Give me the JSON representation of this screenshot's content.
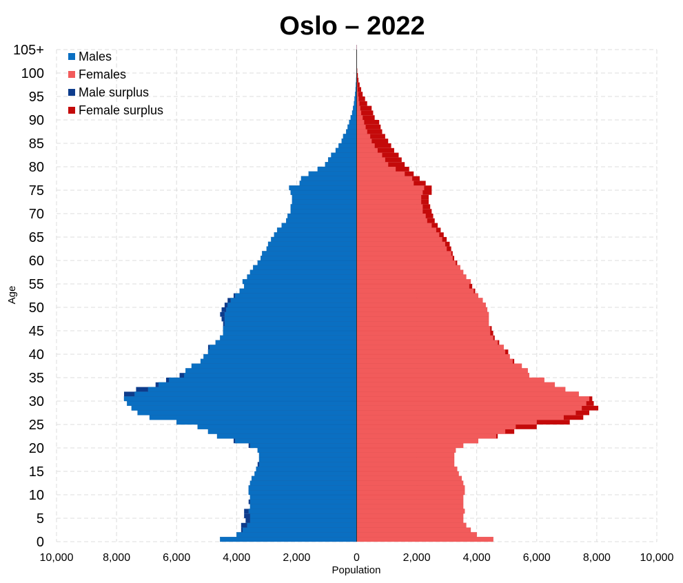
{
  "chart_data": {
    "type": "bar",
    "orientation": "horizontal",
    "title": "Oslo – 2022",
    "xlabel": "Population",
    "ylabel": "Age",
    "xlim": [
      -10000,
      10000
    ],
    "ylim": [
      0,
      105
    ],
    "x_ticks": [
      -10000,
      -8000,
      -6000,
      -4000,
      -2000,
      0,
      2000,
      4000,
      6000,
      8000,
      10000
    ],
    "x_tick_labels": [
      "10,000",
      "8,000",
      "6,000",
      "4,000",
      "2,000",
      "0",
      "2,000",
      "4,000",
      "6,000",
      "8,000",
      "10,000"
    ],
    "y_ticks": [
      0,
      5,
      10,
      15,
      20,
      25,
      30,
      35,
      40,
      45,
      50,
      55,
      60,
      65,
      70,
      75,
      80,
      85,
      90,
      95,
      100,
      105
    ],
    "y_tick_labels": [
      "0",
      "5",
      "10",
      "15",
      "20",
      "25",
      "30",
      "35",
      "40",
      "45",
      "50",
      "55",
      "60",
      "65",
      "70",
      "75",
      "80",
      "85",
      "90",
      "95",
      "100",
      "105+"
    ],
    "grid": true,
    "legend_position": "top-left",
    "legend": [
      {
        "label": "Males",
        "color": "#0a6fc2"
      },
      {
        "label": "Females",
        "color": "#f25b5b"
      },
      {
        "label": "Male surplus",
        "color": "#0d3c8c"
      },
      {
        "label": "Female surplus",
        "color": "#c40a0a"
      }
    ],
    "ages": [
      0,
      1,
      2,
      3,
      4,
      5,
      6,
      7,
      8,
      9,
      10,
      11,
      12,
      13,
      14,
      15,
      16,
      17,
      18,
      19,
      20,
      21,
      22,
      23,
      24,
      25,
      26,
      27,
      28,
      29,
      30,
      31,
      32,
      33,
      34,
      35,
      36,
      37,
      38,
      39,
      40,
      41,
      42,
      43,
      44,
      45,
      46,
      47,
      48,
      49,
      50,
      51,
      52,
      53,
      54,
      55,
      56,
      57,
      58,
      59,
      60,
      61,
      62,
      63,
      64,
      65,
      66,
      67,
      68,
      69,
      70,
      71,
      72,
      73,
      74,
      75,
      76,
      77,
      78,
      79,
      80,
      81,
      82,
      83,
      84,
      85,
      86,
      87,
      88,
      89,
      90,
      91,
      92,
      93,
      94,
      95,
      96,
      97,
      98,
      99,
      100,
      101,
      102,
      103,
      104,
      105
    ],
    "series": [
      {
        "name": "Males",
        "color": "#0a6fc2",
        "values": [
          4550,
          4000,
          3850,
          3850,
          3700,
          3750,
          3750,
          3550,
          3600,
          3550,
          3600,
          3600,
          3550,
          3500,
          3400,
          3350,
          3300,
          3250,
          3250,
          3300,
          3600,
          4100,
          4650,
          4950,
          5300,
          6000,
          6900,
          7300,
          7500,
          7650,
          7750,
          7750,
          7350,
          6700,
          6350,
          5900,
          5700,
          5500,
          5200,
          5100,
          4950,
          4950,
          4700,
          4550,
          4450,
          4450,
          4450,
          4500,
          4550,
          4500,
          4400,
          4300,
          4100,
          3900,
          3750,
          3800,
          3650,
          3550,
          3450,
          3300,
          3200,
          3150,
          3000,
          2950,
          2850,
          2750,
          2650,
          2500,
          2350,
          2300,
          2200,
          2200,
          2150,
          2150,
          2200,
          2250,
          1900,
          1850,
          1600,
          1300,
          1050,
          950,
          850,
          700,
          600,
          500,
          450,
          350,
          300,
          250,
          200,
          150,
          120,
          90,
          70,
          50,
          35,
          25,
          15,
          10,
          6,
          4,
          2,
          1,
          1,
          1
        ]
      },
      {
        "name": "Females",
        "color": "#f25b5b",
        "values": [
          4550,
          4000,
          3800,
          3650,
          3550,
          3550,
          3600,
          3550,
          3550,
          3550,
          3600,
          3600,
          3550,
          3500,
          3400,
          3350,
          3250,
          3250,
          3250,
          3300,
          3550,
          4050,
          4700,
          5250,
          6000,
          7100,
          7550,
          7750,
          8050,
          7900,
          7850,
          7400,
          6950,
          6600,
          6250,
          5750,
          5700,
          5500,
          5250,
          5100,
          5050,
          4900,
          4750,
          4600,
          4550,
          4500,
          4400,
          4400,
          4400,
          4350,
          4300,
          4200,
          4050,
          3950,
          3850,
          3800,
          3650,
          3550,
          3450,
          3350,
          3250,
          3200,
          3150,
          3100,
          3000,
          2900,
          2800,
          2700,
          2600,
          2550,
          2500,
          2450,
          2400,
          2400,
          2500,
          2500,
          2300,
          2100,
          1900,
          1750,
          1600,
          1500,
          1400,
          1250,
          1150,
          1050,
          950,
          850,
          800,
          750,
          600,
          550,
          500,
          350,
          280,
          200,
          150,
          100,
          60,
          40,
          20,
          10,
          5,
          2,
          1,
          1
        ]
      }
    ]
  }
}
